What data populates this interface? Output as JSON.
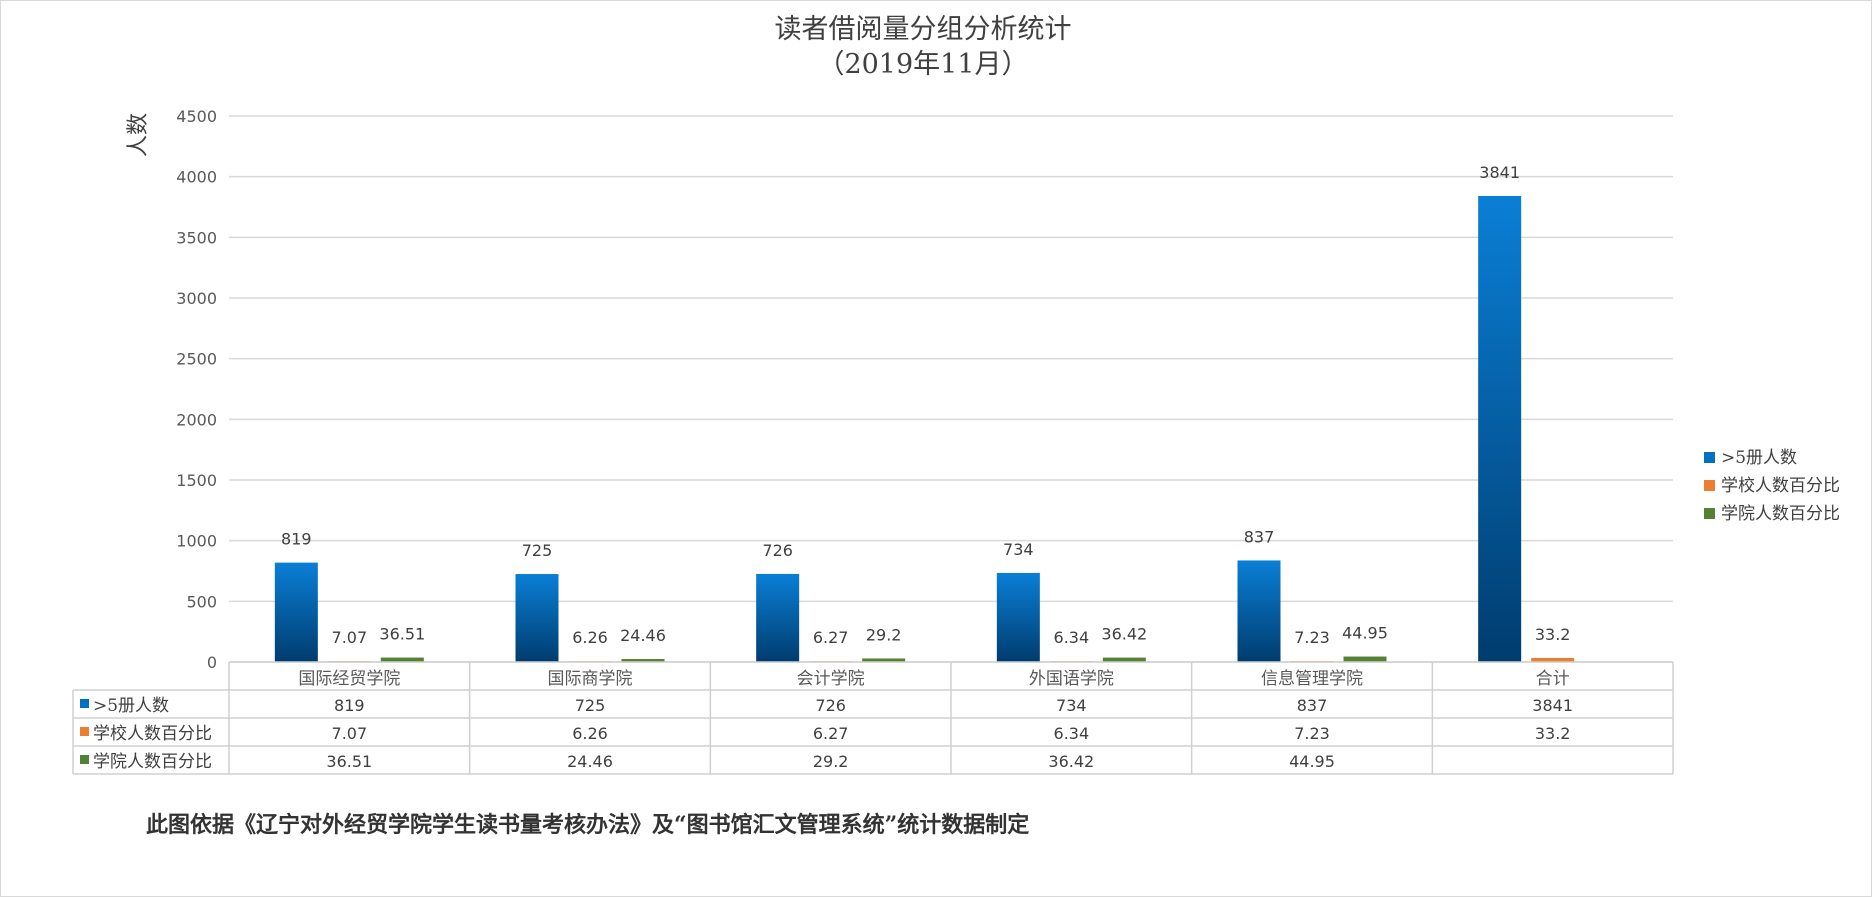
{
  "chart_data": {
    "type": "bar",
    "title": "读者借阅量分组分析统计",
    "subtitle": "（2019年11月）",
    "ylabel": "人数",
    "xlabel": "",
    "ylim": [
      0,
      4500
    ],
    "yticks": [
      0,
      500,
      1000,
      1500,
      2000,
      2500,
      3000,
      3500,
      4000,
      4500
    ],
    "grid": true,
    "legend_position": "right",
    "categories": [
      "国际经贸学院",
      "国际商学院",
      "会计学院",
      "外国语学院",
      "信息管理学院",
      "合计"
    ],
    "series": [
      {
        "name": ">5册人数",
        "values": [
          819,
          725,
          726,
          734,
          837,
          3841
        ],
        "color": "#0070c0"
      },
      {
        "name": "学校人数百分比",
        "values": [
          7.07,
          6.26,
          6.27,
          6.34,
          7.23,
          33.2
        ],
        "color": "#ed7d31"
      },
      {
        "name": "学院人数百分比",
        "values": [
          36.51,
          24.46,
          29.2,
          36.42,
          44.95,
          null
        ],
        "color": "#548235"
      }
    ],
    "data_table": true
  },
  "footer": "此图依据《辽宁对外经贸学院学生读书量考核办法》及“图书馆汇文管理系统”统计数据制定"
}
